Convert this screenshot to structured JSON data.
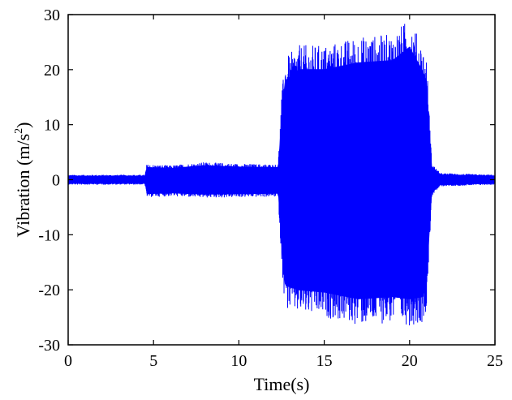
{
  "chart_data": {
    "type": "line",
    "title": "",
    "xlabel": "Time(s)",
    "ylabel_main": "Vibration (m/s",
    "ylabel_sup": "2",
    "ylabel_close": ")",
    "xlim": [
      0,
      25
    ],
    "ylim": [
      -30,
      30
    ],
    "xticks": [
      0,
      5,
      10,
      15,
      20,
      25
    ],
    "yticks": [
      30,
      20,
      10,
      0,
      -10,
      -20,
      -30
    ],
    "grid": false,
    "legend": "none",
    "series": [
      {
        "color": "#0000ff",
        "envelope": [
          {
            "t": 0.0,
            "upper": 0.9,
            "lower": -0.9
          },
          {
            "t": 4.5,
            "upper": 0.9,
            "lower": -0.9
          },
          {
            "t": 4.6,
            "upper": 2.8,
            "lower": -3.2
          },
          {
            "t": 6.0,
            "upper": 2.6,
            "lower": -3.0
          },
          {
            "t": 8.0,
            "upper": 3.2,
            "lower": -3.3
          },
          {
            "t": 10.0,
            "upper": 2.9,
            "lower": -3.2
          },
          {
            "t": 12.3,
            "upper": 2.8,
            "lower": -3.1
          },
          {
            "t": 12.5,
            "upper": 15.0,
            "lower": -15.0
          },
          {
            "t": 12.7,
            "upper": 22.0,
            "lower": -23.5
          },
          {
            "t": 13.5,
            "upper": 24.5,
            "lower": -24.5
          },
          {
            "t": 15.0,
            "upper": 24.5,
            "lower": -25.0
          },
          {
            "t": 17.0,
            "upper": 26.0,
            "lower": -26.5
          },
          {
            "t": 19.0,
            "upper": 26.5,
            "lower": -26.0
          },
          {
            "t": 20.0,
            "upper": 29.5,
            "lower": -26.5
          },
          {
            "t": 20.8,
            "upper": 24.0,
            "lower": -26.0
          },
          {
            "t": 21.0,
            "upper": 22.0,
            "lower": -23.0
          },
          {
            "t": 21.3,
            "upper": 3.0,
            "lower": -3.0
          },
          {
            "t": 21.8,
            "upper": 1.2,
            "lower": -1.2
          },
          {
            "t": 25.0,
            "upper": 0.9,
            "lower": -0.9
          }
        ]
      }
    ]
  }
}
